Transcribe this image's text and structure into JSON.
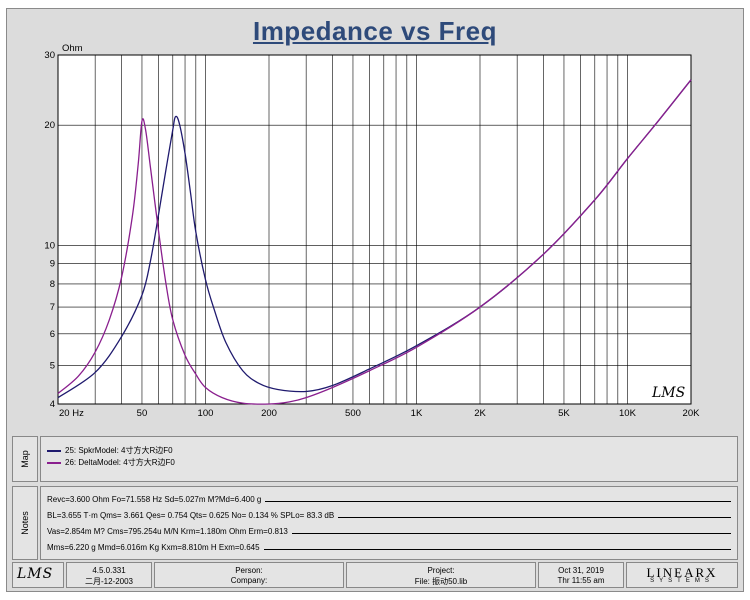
{
  "chart_data": {
    "type": "line",
    "title": "Impedance vs Freq",
    "ylabel": "Ohm",
    "xscale": "log",
    "yscale": "log",
    "xlim": [
      20,
      20000
    ],
    "ylim": [
      4,
      30
    ],
    "x_tick_labels": [
      {
        "v": 20,
        "t": "20  Hz"
      },
      {
        "v": 50,
        "t": "50"
      },
      {
        "v": 100,
        "t": "100"
      },
      {
        "v": 200,
        "t": "200"
      },
      {
        "v": 500,
        "t": "500"
      },
      {
        "v": 1000,
        "t": "1K"
      },
      {
        "v": 2000,
        "t": "2K"
      },
      {
        "v": 5000,
        "t": "5K"
      },
      {
        "v": 10000,
        "t": "10K"
      },
      {
        "v": 20000,
        "t": "20K"
      }
    ],
    "y_tick_labels": [
      {
        "v": 4,
        "t": "4"
      },
      {
        "v": 5,
        "t": "5"
      },
      {
        "v": 6,
        "t": "6"
      },
      {
        "v": 7,
        "t": "7"
      },
      {
        "v": 8,
        "t": "8"
      },
      {
        "v": 9,
        "t": "9"
      },
      {
        "v": 10,
        "t": "10"
      },
      {
        "v": 20,
        "t": "20"
      },
      {
        "v": 30,
        "t": "30"
      }
    ],
    "watermark": "LMS",
    "series": [
      {
        "name": "25: SpkrModel: 4寸方大R边F0",
        "color": "#1f1a6e",
        "x": [
          20,
          30,
          40,
          50,
          55,
          60,
          65,
          70,
          72,
          75,
          80,
          85,
          90,
          100,
          110,
          125,
          150,
          180,
          220,
          300,
          400,
          600,
          1000,
          2000,
          4000,
          7000,
          10000,
          14000,
          20000
        ],
        "y": [
          4.15,
          4.8,
          5.9,
          7.5,
          9.2,
          12.0,
          15.5,
          19.5,
          21.0,
          20.3,
          17.0,
          13.5,
          10.8,
          8.2,
          6.9,
          5.7,
          4.85,
          4.5,
          4.35,
          4.3,
          4.45,
          4.9,
          5.6,
          7.0,
          9.5,
          13.0,
          16.5,
          20.5,
          26.0
        ]
      },
      {
        "name": "26: DeltaModel: 4寸方大R边F0",
        "color": "#8a1f8e",
        "x": [
          20,
          25,
          30,
          35,
          40,
          45,
          48,
          50,
          52,
          55,
          60,
          65,
          70,
          80,
          90,
          100,
          120,
          150,
          200,
          250,
          300,
          400,
          600,
          1000,
          2000,
          4000,
          7000,
          10000,
          14000,
          20000
        ],
        "y": [
          4.25,
          4.7,
          5.4,
          6.5,
          8.3,
          11.8,
          16.0,
          20.5,
          19.5,
          15.5,
          10.8,
          8.0,
          6.5,
          5.3,
          4.75,
          4.4,
          4.15,
          4.02,
          4.0,
          4.05,
          4.15,
          4.4,
          4.85,
          5.55,
          7.0,
          9.5,
          13.0,
          16.5,
          20.5,
          26.0
        ]
      }
    ]
  },
  "map": {
    "tab_label": "Map",
    "legend": [
      {
        "label": "25: SpkrModel: 4寸方大R边F0",
        "color": "#1f1a6e"
      },
      {
        "label": "26: DeltaModel: 4寸方大R边F0",
        "color": "#8a1f8e"
      }
    ]
  },
  "notes": {
    "tab_label": "Notes",
    "rows": [
      "Revc=3.600 Ohm  Fo=71.558 Hz  Sd=5.027m M?Md=6.400 g",
      "BL=3.655 T·m  Qms= 3.661  Qes= 0.754  Qts= 0.625  No= 0.134 %  SPLo= 83.3 dB",
      "Vas=2.854m M? Cms=795.254u M/N  Krm=1.180m Ohm  Erm=0.813",
      "Mms=6.220 g  Mmd=6.016m Kg  Kxm=8.810m H  Exm=0.645"
    ]
  },
  "footer": {
    "logo": "LMS",
    "version": "4.5.0.331",
    "date_build": "二月-12-2003",
    "person_label": "Person:",
    "company_label": "Company:",
    "project_label": "Project:",
    "file_label": "File: 振动50.lib",
    "date": "Oct 31, 2019",
    "time": "Thr 11:55 am",
    "brand": "LINEARX",
    "brand_sub": "SYSTEMS"
  }
}
